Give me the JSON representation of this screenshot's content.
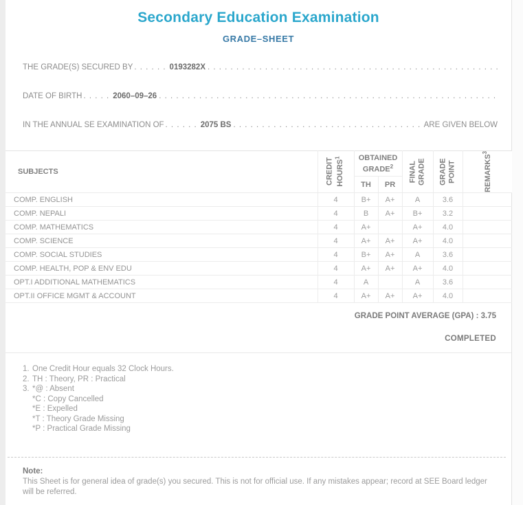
{
  "colors": {
    "title_accent": "#2ba7cc",
    "subtitle_accent": "#3779a6",
    "body_text": "#9b9b9b"
  },
  "page": {
    "title": "Secondary Education Examination",
    "subtitle": "GRADE–SHEET"
  },
  "info": {
    "fill_dots": ". . . . . . . . . . . . . . . . . . . . . . . . . . . . . . . . . . . . . . . . . . . . . . . . . . . . . . . . . . . . . . . . . . . . . . . . . . . . . . . . . . . . . . . . . . . . . . . . . . . . . . . . . . . .",
    "lines": [
      {
        "label": "THE GRADE(S) SECURED BY",
        "pre_dots": ". . . . . .",
        "value": "0193282X",
        "suffix": ""
      },
      {
        "label": "DATE OF BIRTH",
        "pre_dots": ". . . . .",
        "value": "2060–09–26",
        "suffix": ""
      },
      {
        "label": "IN THE ANNUAL SE EXAMINATION OF",
        "pre_dots": ". . . . . .",
        "value": "2075 BS",
        "suffix": "ARE GIVEN BELOW"
      }
    ]
  },
  "table": {
    "headers": {
      "subjects": "SUBJECTS",
      "credit_l1": "CREDIT",
      "credit_l2": "HOURS",
      "credit_sup": "1",
      "obtained_l1": "OBTAINED",
      "obtained_l2": "GRADE",
      "obtained_sup": "2",
      "th": "TH",
      "pr": "PR",
      "final_l1": "FINAL",
      "final_l2": "GRADE",
      "gp_l1": "GRADE",
      "gp_l2": "POINT",
      "remarks": "REMARKS",
      "remarks_sup": "3"
    },
    "rows": [
      {
        "subject": "COMP. ENGLISH",
        "credit": "4",
        "th": "B+",
        "pr": "A+",
        "final": "A",
        "gp": "3.6",
        "remarks": ""
      },
      {
        "subject": "COMP. NEPALI",
        "credit": "4",
        "th": "B",
        "pr": "A+",
        "final": "B+",
        "gp": "3.2",
        "remarks": ""
      },
      {
        "subject": "COMP. MATHEMATICS",
        "credit": "4",
        "th": "A+",
        "pr": "",
        "final": "A+",
        "gp": "4.0",
        "remarks": ""
      },
      {
        "subject": "COMP. SCIENCE",
        "credit": "4",
        "th": "A+",
        "pr": "A+",
        "final": "A+",
        "gp": "4.0",
        "remarks": ""
      },
      {
        "subject": "COMP. SOCIAL STUDIES",
        "credit": "4",
        "th": "B+",
        "pr": "A+",
        "final": "A",
        "gp": "3.6",
        "remarks": ""
      },
      {
        "subject": "COMP. HEALTH, POP & ENV EDU",
        "credit": "4",
        "th": "A+",
        "pr": "A+",
        "final": "A+",
        "gp": "4.0",
        "remarks": ""
      },
      {
        "subject": "OPT.I ADDITIONAL MATHEMATICS",
        "credit": "4",
        "th": "A",
        "pr": "",
        "final": "A",
        "gp": "3.6",
        "remarks": ""
      },
      {
        "subject": "OPT.II OFFICE MGMT & ACCOUNT",
        "credit": "4",
        "th": "A+",
        "pr": "A+",
        "final": "A+",
        "gp": "4.0",
        "remarks": ""
      }
    ]
  },
  "summary": {
    "gpa_label": "GRADE POINT AVERAGE (GPA) :",
    "gpa_value": "3.75",
    "status": "COMPLETED"
  },
  "footnotes": {
    "items": [
      {
        "num": "1.",
        "text": "One Credit Hour equals 32 Clock Hours."
      },
      {
        "num": "2.",
        "text": "TH : Theory, PR : Practical"
      },
      {
        "num": "3.",
        "text": "*@ : Absent"
      }
    ],
    "sub_items": [
      "*C : Copy Cancelled",
      "*E : Expelled",
      "*T : Theory Grade Missing",
      "*P : Practical Grade Missing"
    ]
  },
  "note": {
    "heading": "Note:",
    "body": "This Sheet is for general idea of grade(s) you secured. This is not for official use. If any mistakes appear; record at SEE Board ledger will be referred."
  }
}
